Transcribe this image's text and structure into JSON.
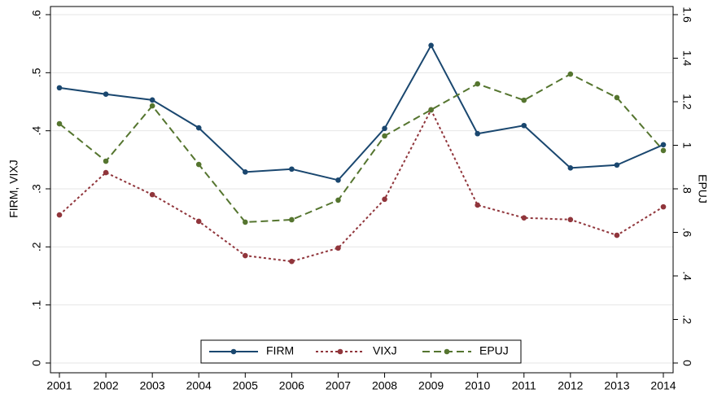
{
  "chart_data": {
    "type": "line",
    "y_label": "FIRM, VIXJ",
    "y2_label": "EPUJ",
    "categories": [
      "2001",
      "2002",
      "2003",
      "2004",
      "2005",
      "2006",
      "2007",
      "2008",
      "2009",
      "2010",
      "2011",
      "2012",
      "2013",
      "2014"
    ],
    "series": [
      {
        "name": "FIRM",
        "color": "#1a476f",
        "dash": "solid",
        "values": [
          0.474,
          0.463,
          0.453,
          0.405,
          0.329,
          0.334,
          0.315,
          0.404,
          0.547,
          0.395,
          0.409,
          0.336,
          0.341,
          0.376
        ]
      },
      {
        "name": "VIXJ",
        "color": "#90353b",
        "dash": "dot",
        "values": [
          0.255,
          0.328,
          0.29,
          0.244,
          0.185,
          0.175,
          0.198,
          0.282,
          0.436,
          0.272,
          0.25,
          0.247,
          0.22,
          0.269
        ]
      },
      {
        "name": "EPUJ",
        "color": "#55752f",
        "dash": "dash",
        "axis": "y2",
        "values": [
          1.099,
          0.927,
          1.181,
          0.912,
          0.647,
          0.658,
          0.748,
          1.043,
          1.163,
          1.282,
          1.207,
          1.327,
          1.219,
          0.976
        ]
      }
    ],
    "ylim": [
      0,
      0.6
    ],
    "yticks": [
      0,
      {
        "value": 0.1,
        "label": ".1"
      },
      {
        "value": 0.2,
        "label": ".2"
      },
      {
        "value": 0.3,
        "label": ".3"
      },
      {
        "value": 0.4,
        "label": ".4"
      },
      {
        "value": 0.5,
        "label": ".5"
      },
      {
        "value": 0.6,
        "label": ".6"
      }
    ],
    "y2lim": [
      0,
      1.6
    ],
    "y2ticks": [
      0,
      {
        "value": 0.2,
        "label": ".2"
      },
      {
        "value": 0.4,
        "label": ".4"
      },
      {
        "value": 0.6,
        "label": ".6"
      },
      {
        "value": 0.8,
        "label": ".8"
      },
      1,
      {
        "value": 1.2,
        "label": "1.2"
      },
      {
        "value": 1.4,
        "label": "1.4"
      },
      {
        "value": 1.6,
        "label": "1.6"
      }
    ],
    "grid": true,
    "legend": "bottom"
  }
}
